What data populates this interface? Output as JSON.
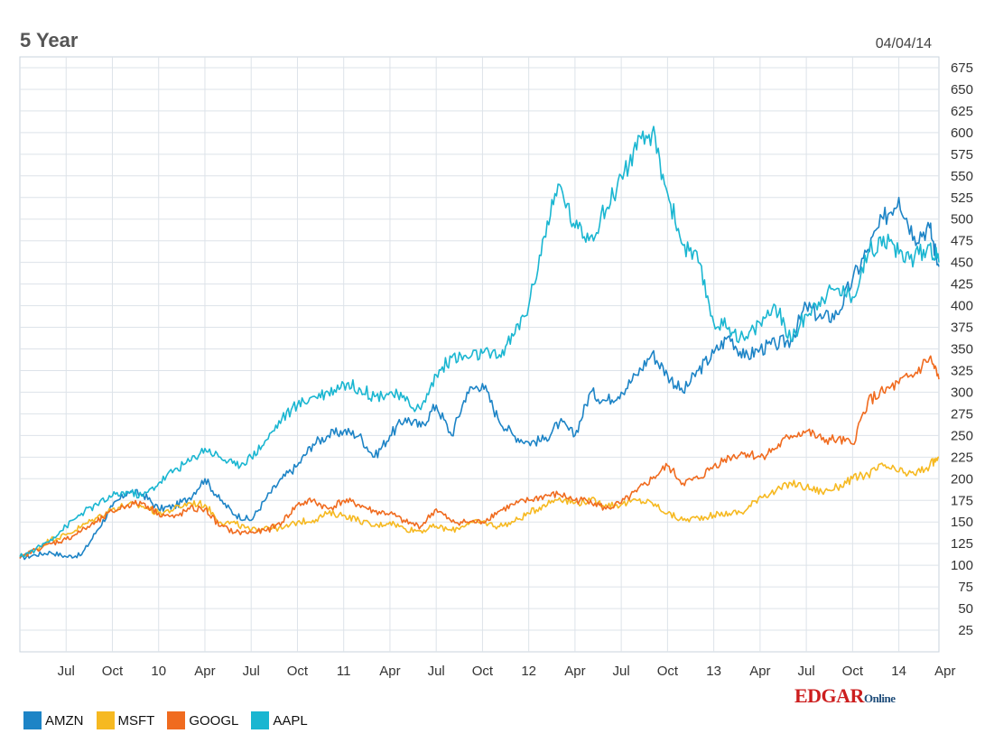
{
  "chart_data": {
    "type": "line",
    "title": "5 Year",
    "date": "04/04/14",
    "ylim": [
      0,
      687.5
    ],
    "yticks": [
      25,
      50,
      75,
      100,
      125,
      150,
      175,
      200,
      225,
      250,
      275,
      300,
      325,
      350,
      375,
      400,
      425,
      450,
      475,
      500,
      525,
      550,
      575,
      600,
      625,
      650,
      675
    ],
    "xlim": [
      0,
      59.6
    ],
    "x_unit": "months since Apr 2009",
    "x_ticks": [
      {
        "label": "Jul",
        "at": 3
      },
      {
        "label": "Oct",
        "at": 6
      },
      {
        "label": "10",
        "at": 9
      },
      {
        "label": "Apr",
        "at": 12
      },
      {
        "label": "Jul",
        "at": 15
      },
      {
        "label": "Oct",
        "at": 18
      },
      {
        "label": "11",
        "at": 21
      },
      {
        "label": "Apr",
        "at": 24
      },
      {
        "label": "Jul",
        "at": 27
      },
      {
        "label": "Oct",
        "at": 30
      },
      {
        "label": "12",
        "at": 33
      },
      {
        "label": "Apr",
        "at": 36
      },
      {
        "label": "Jul",
        "at": 39
      },
      {
        "label": "Oct",
        "at": 42
      },
      {
        "label": "13",
        "at": 45
      },
      {
        "label": "Apr",
        "at": 48
      },
      {
        "label": "Jul",
        "at": 51
      },
      {
        "label": "Oct",
        "at": 54
      },
      {
        "label": "14",
        "at": 57
      },
      {
        "label": "Apr",
        "at": 60
      }
    ],
    "grid": true,
    "series": [
      {
        "name": "AMZN",
        "color": "#1d84c6",
        "x": [
          0,
          1,
          2,
          3,
          4,
          5,
          6,
          7,
          8,
          9,
          10,
          11,
          12,
          13,
          14,
          15,
          16,
          17,
          18,
          19,
          20,
          21,
          22,
          23,
          24,
          25,
          26,
          27,
          28,
          29,
          30,
          31,
          32,
          33,
          34,
          35,
          36,
          37,
          38,
          39,
          40,
          41,
          42,
          43,
          44,
          45,
          46,
          47,
          48,
          49,
          50,
          51,
          52,
          53,
          54,
          55,
          56,
          57,
          58,
          59,
          59.6
        ],
        "values": [
          108,
          112,
          115,
          110,
          112,
          140,
          168,
          185,
          182,
          165,
          168,
          178,
          200,
          175,
          158,
          152,
          178,
          200,
          215,
          240,
          250,
          255,
          250,
          225,
          250,
          270,
          260,
          285,
          250,
          300,
          310,
          270,
          250,
          242,
          245,
          265,
          250,
          300,
          290,
          300,
          320,
          345,
          320,
          300,
          325,
          345,
          365,
          340,
          350,
          355,
          360,
          400,
          385,
          390,
          430,
          465,
          500,
          525,
          480,
          490,
          445
        ]
      },
      {
        "name": "MSFT",
        "color": "#f6b921",
        "x": [
          0,
          1,
          2,
          3,
          4,
          5,
          6,
          7,
          8,
          9,
          10,
          11,
          12,
          13,
          14,
          15,
          16,
          17,
          18,
          19,
          20,
          21,
          22,
          23,
          24,
          25,
          26,
          27,
          28,
          29,
          30,
          31,
          32,
          33,
          34,
          35,
          36,
          37,
          38,
          39,
          40,
          41,
          42,
          43,
          44,
          45,
          46,
          47,
          48,
          49,
          50,
          51,
          52,
          53,
          54,
          55,
          56,
          57,
          58,
          59,
          59.6
        ],
        "values": [
          110,
          118,
          130,
          135,
          145,
          155,
          165,
          170,
          168,
          160,
          165,
          172,
          170,
          150,
          148,
          140,
          145,
          142,
          150,
          152,
          160,
          158,
          152,
          145,
          150,
          142,
          140,
          145,
          140,
          148,
          150,
          145,
          150,
          160,
          170,
          178,
          172,
          175,
          170,
          170,
          175,
          172,
          160,
          152,
          155,
          158,
          160,
          162,
          180,
          185,
          195,
          190,
          185,
          190,
          200,
          205,
          215,
          208,
          205,
          215,
          225
        ]
      },
      {
        "name": "GOOGL",
        "color": "#f06b1f",
        "x": [
          0,
          1,
          2,
          3,
          4,
          5,
          6,
          7,
          8,
          9,
          10,
          11,
          12,
          13,
          14,
          15,
          16,
          17,
          18,
          19,
          20,
          21,
          22,
          23,
          24,
          25,
          26,
          27,
          28,
          29,
          30,
          31,
          32,
          33,
          34,
          35,
          36,
          37,
          38,
          39,
          40,
          41,
          42,
          43,
          44,
          45,
          46,
          47,
          48,
          49,
          50,
          51,
          52,
          53,
          54,
          55,
          56,
          57,
          58,
          59,
          59.6
        ],
        "values": [
          108,
          118,
          125,
          130,
          140,
          150,
          162,
          170,
          172,
          160,
          155,
          165,
          165,
          145,
          138,
          138,
          140,
          150,
          170,
          175,
          165,
          175,
          170,
          162,
          160,
          150,
          145,
          165,
          150,
          150,
          150,
          162,
          170,
          175,
          180,
          182,
          175,
          175,
          165,
          172,
          185,
          200,
          215,
          195,
          200,
          215,
          225,
          230,
          225,
          235,
          250,
          255,
          245,
          245,
          240,
          290,
          300,
          310,
          320,
          340,
          315
        ]
      },
      {
        "name": "AAPL",
        "color": "#1ab6d1",
        "x": [
          0,
          1,
          2,
          3,
          4,
          5,
          6,
          7,
          8,
          9,
          10,
          11,
          12,
          13,
          14,
          15,
          16,
          17,
          18,
          19,
          20,
          21,
          22,
          23,
          24,
          25,
          26,
          27,
          28,
          29,
          30,
          31,
          32,
          33,
          34,
          35,
          36,
          37,
          38,
          39,
          40,
          41,
          42,
          43,
          44,
          45,
          46,
          47,
          48,
          49,
          50,
          51,
          52,
          53,
          54,
          55,
          56,
          57,
          58,
          59,
          59.6
        ],
        "values": [
          110,
          118,
          130,
          145,
          160,
          170,
          180,
          185,
          180,
          195,
          210,
          220,
          235,
          225,
          215,
          225,
          245,
          270,
          285,
          295,
          300,
          310,
          305,
          295,
          300,
          290,
          280,
          320,
          340,
          340,
          345,
          340,
          365,
          400,
          480,
          540,
          490,
          480,
          510,
          550,
          580,
          600,
          530,
          470,
          450,
          380,
          375,
          360,
          380,
          400,
          360,
          390,
          410,
          420,
          410,
          460,
          480,
          460,
          455,
          470,
          450
        ]
      }
    ],
    "legend": [
      "AMZN",
      "MSFT",
      "GOOGL",
      "AAPL"
    ],
    "legend_position": "bottom-left"
  },
  "brand": {
    "name": "EDGAR",
    "suffix": "Online"
  }
}
